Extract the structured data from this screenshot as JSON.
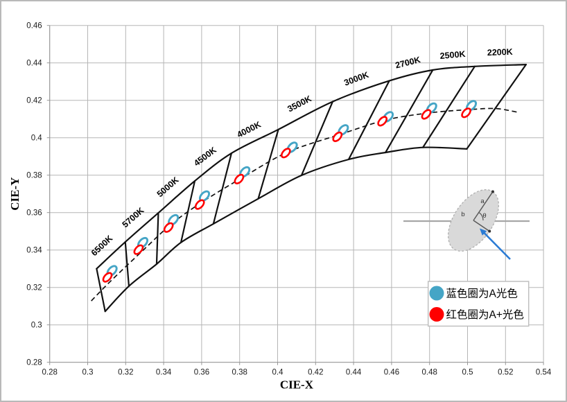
{
  "chart_data": {
    "type": "scatter",
    "title": "",
    "xlabel": "CIE-X",
    "ylabel": "CIE-Y",
    "xlim": [
      0.28,
      0.54
    ],
    "ylim": [
      0.28,
      0.46
    ],
    "grid": true,
    "x_ticks": [
      0.28,
      0.3,
      0.32,
      0.34,
      0.36,
      0.38,
      0.4,
      0.42,
      0.44,
      0.46,
      0.48,
      0.5,
      0.52,
      0.54
    ],
    "x_tick_labels": [
      "0.28",
      "0.3",
      "0.32",
      "0.34",
      "0.36",
      "0.38",
      "0.4",
      "0.42",
      "0.44",
      "0.46",
      "0.48",
      "0.5",
      "0.52",
      "0.54"
    ],
    "y_ticks": [
      0.28,
      0.3,
      0.32,
      0.34,
      0.36,
      0.38,
      0.4,
      0.42,
      0.44,
      0.46
    ],
    "y_tick_labels": [
      "0.28",
      "0.3",
      "0.32",
      "0.34",
      "0.36",
      "0.38",
      "0.4",
      "0.42",
      "0.44",
      "0.46"
    ],
    "cct_bins": {
      "labels": [
        "6500K",
        "5700K",
        "5000K",
        "4500K",
        "4000K",
        "3500K",
        "3000K",
        "2700K",
        "2500K",
        "2200K"
      ],
      "top_corners": [
        [
          0.3047,
          0.33
        ],
        [
          0.3198,
          0.3443
        ],
        [
          0.3372,
          0.3598
        ],
        [
          0.3564,
          0.3769
        ],
        [
          0.3757,
          0.3917
        ],
        [
          0.4004,
          0.4044
        ],
        [
          0.429,
          0.4193
        ],
        [
          0.4588,
          0.4304
        ],
        [
          0.4817,
          0.4362
        ],
        [
          0.5038,
          0.4381
        ],
        [
          0.5308,
          0.4391
        ]
      ],
      "bottom_corners": [
        [
          0.3092,
          0.3072
        ],
        [
          0.3217,
          0.3207
        ],
        [
          0.3363,
          0.3325
        ],
        [
          0.3491,
          0.344
        ],
        [
          0.3662,
          0.354
        ],
        [
          0.3898,
          0.3674
        ],
        [
          0.4126,
          0.3799
        ],
        [
          0.4374,
          0.3884
        ],
        [
          0.4568,
          0.3921
        ],
        [
          0.4765,
          0.3948
        ],
        [
          0.4996,
          0.394
        ]
      ]
    },
    "planckian_locus": {
      "style": "dashed",
      "points": [
        [
          0.3019,
          0.3128
        ],
        [
          0.3122,
          0.3235
        ],
        [
          0.3287,
          0.3394
        ],
        [
          0.344,
          0.3538
        ],
        [
          0.3604,
          0.3657
        ],
        [
          0.3816,
          0.3788
        ],
        [
          0.4053,
          0.3923
        ],
        [
          0.4327,
          0.4017
        ],
        [
          0.4571,
          0.4095
        ],
        [
          0.4801,
          0.4133
        ],
        [
          0.5005,
          0.415
        ],
        [
          0.5148,
          0.4156
        ],
        [
          0.526,
          0.4137
        ]
      ]
    },
    "series": [
      {
        "name": "A",
        "legend_label": "蓝色圈为A光色",
        "color": "#45A5C6",
        "marker": "rotated-ellipse-outline",
        "points": [
          {
            "cct": "6500K",
            "x": 0.3128,
            "y": 0.3289
          },
          {
            "cct": "5700K",
            "x": 0.329,
            "y": 0.3439
          },
          {
            "cct": "5000K",
            "x": 0.3451,
            "y": 0.3561
          },
          {
            "cct": "4500K",
            "x": 0.3615,
            "y": 0.3688
          },
          {
            "cct": "4000K",
            "x": 0.3827,
            "y": 0.3817
          },
          {
            "cct": "3500K",
            "x": 0.4077,
            "y": 0.3949
          },
          {
            "cct": "3000K",
            "x": 0.4346,
            "y": 0.4042
          },
          {
            "cct": "2700K",
            "x": 0.4582,
            "y": 0.4112
          },
          {
            "cct": "2500K",
            "x": 0.4811,
            "y": 0.4158
          },
          {
            "cct": "2200K",
            "x": 0.502,
            "y": 0.4171
          }
        ]
      },
      {
        "name": "A+",
        "legend_label": "红色圈为A+光色",
        "color": "#FF0000",
        "marker": "rotated-ellipse-outline",
        "points": [
          {
            "cct": "6500K",
            "x": 0.3104,
            "y": 0.3254
          },
          {
            "cct": "5700K",
            "x": 0.3268,
            "y": 0.3402
          },
          {
            "cct": "5000K",
            "x": 0.3426,
            "y": 0.352
          },
          {
            "cct": "4500K",
            "x": 0.359,
            "y": 0.3643
          },
          {
            "cct": "4000K",
            "x": 0.3797,
            "y": 0.3779
          },
          {
            "cct": "3500K",
            "x": 0.4043,
            "y": 0.3918
          },
          {
            "cct": "3000K",
            "x": 0.4315,
            "y": 0.4005
          },
          {
            "cct": "2700K",
            "x": 0.4552,
            "y": 0.4088
          },
          {
            "cct": "2500K",
            "x": 0.4783,
            "y": 0.4125
          },
          {
            "cct": "2200K",
            "x": 0.4993,
            "y": 0.4133
          }
        ]
      }
    ],
    "legend": {
      "position": "bottom-right",
      "entries": [
        {
          "label": "蓝色圈为A光色",
          "color": "#45A5C6"
        },
        {
          "label": "红色圈为A+光色",
          "color": "#FF0000"
        }
      ]
    },
    "inset": {
      "description": "ellipse-axes-diagram",
      "labels": {
        "major_axis": "a",
        "minor_axis": "b",
        "angle": "θ"
      }
    },
    "colors": {
      "grid": "#b5b5b5",
      "axis": "#969696",
      "band_outline": "#111111",
      "locus": "#111111",
      "tick_text": "#1a1a1a",
      "inset_fill": "#d9d9d9",
      "inset_line": "#595959",
      "inset_arrow": "#2b7bd4",
      "legend_border": "#bfbfbf"
    }
  }
}
